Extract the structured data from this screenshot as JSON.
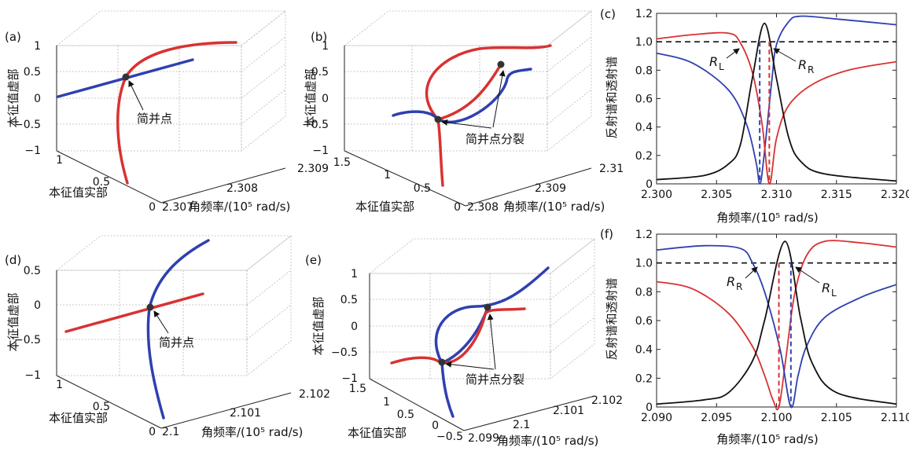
{
  "panel_labels": [
    "(a)",
    "(b)",
    "(c)",
    "(d)",
    "(e)",
    "(f)"
  ],
  "colors": {
    "red": "#d93232",
    "blue": "#2f40b0",
    "black": "#111111",
    "dash": "#111111",
    "marker": "#333333"
  },
  "chart_data": [
    {
      "id": "a",
      "type": "line3d",
      "title": "(a)",
      "zlabel": "本征值虚部",
      "ylabel": "本征值实部",
      "xlabel": "角频率/(10⁵ rad/s)",
      "z_ticks": [
        "1",
        "0.5",
        "0",
        "−0.5",
        "−1"
      ],
      "y_ticks": [
        "1",
        "0.5",
        "0"
      ],
      "x_ticks": [
        "2.307",
        "2.308",
        "2.309"
      ],
      "annotation": "简并点",
      "series": [
        {
          "name": "red branch",
          "color": "red",
          "shape": "parabola opening to right, through degenerate point"
        },
        {
          "name": "blue branch",
          "color": "blue",
          "shape": "straight line crossing degenerate point"
        }
      ]
    },
    {
      "id": "b",
      "type": "line3d",
      "title": "(b)",
      "zlabel": "本征值虚部",
      "ylabel": "本征值实部",
      "xlabel": "角频率/(10⁵ rad/s)",
      "z_ticks": [
        "1",
        "0.5",
        "0",
        "−0.5",
        "−1"
      ],
      "y_ticks": [
        "1.5",
        "1",
        "0.5",
        "0"
      ],
      "x_ticks": [
        "2.308",
        "2.309",
        "2.31"
      ],
      "annotation": "简并点分裂",
      "series": [
        {
          "name": "red branch",
          "color": "red",
          "shape": "loop with split degenerate points"
        },
        {
          "name": "blue branch",
          "color": "blue",
          "shape": "S-curve between split points"
        }
      ]
    },
    {
      "id": "c",
      "type": "line",
      "title": "(c)",
      "ylabel": "反射谱和透射谱",
      "xlabel": "角频率/(10⁵ rad/s)",
      "xlim": [
        2.3,
        2.32
      ],
      "ylim": [
        0,
        1.2
      ],
      "x_ticks": [
        "2.300",
        "2.305",
        "2.310",
        "2.315",
        "2.320"
      ],
      "y_ticks": [
        "0",
        "0.2",
        "0.4",
        "0.6",
        "0.8",
        "1.0",
        "1.2"
      ],
      "dashed_verticals": [
        2.3086,
        2.3094
      ],
      "reference_line": 1.0,
      "labels": [
        {
          "text": "R",
          "sub": "L"
        },
        {
          "text": "R",
          "sub": "R"
        }
      ],
      "series": [
        {
          "name": "R_L",
          "color": "blue",
          "x": [
            2.3,
            2.303,
            2.306,
            2.3075,
            2.3083,
            2.3086,
            2.3089,
            2.3096,
            2.31,
            2.311,
            2.312,
            2.315,
            2.32
          ],
          "y": [
            0.92,
            0.85,
            0.66,
            0.42,
            0.15,
            0.0,
            0.15,
            0.72,
            0.98,
            1.14,
            1.18,
            1.16,
            1.12
          ]
        },
        {
          "name": "R_R",
          "color": "red",
          "x": [
            2.3,
            2.303,
            2.306,
            2.307,
            2.308,
            2.3088,
            2.3094,
            2.31,
            2.311,
            2.313,
            2.316,
            2.32
          ],
          "y": [
            1.02,
            1.05,
            1.06,
            0.99,
            0.78,
            0.42,
            0.0,
            0.32,
            0.55,
            0.7,
            0.8,
            0.86
          ]
        },
        {
          "name": "T",
          "color": "black",
          "x": [
            2.3,
            2.304,
            2.306,
            2.307,
            2.308,
            2.309,
            2.31,
            2.311,
            2.312,
            2.314,
            2.32
          ],
          "y": [
            0.03,
            0.06,
            0.14,
            0.28,
            0.75,
            1.13,
            0.74,
            0.33,
            0.16,
            0.07,
            0.02
          ]
        }
      ]
    },
    {
      "id": "d",
      "type": "line3d",
      "title": "(d)",
      "zlabel": "本征值虚部",
      "ylabel": "本征值实部",
      "xlabel": "角频率/(10⁵ rad/s)",
      "z_ticks": [
        "0.5",
        "0",
        "−0.5",
        "−1"
      ],
      "y_ticks": [
        "1",
        "0.5",
        "0"
      ],
      "x_ticks": [
        "2.1",
        "2.101",
        "2.102"
      ],
      "annotation": "简并点",
      "series": [
        {
          "name": "blue branch",
          "color": "blue",
          "shape": "parabola through degenerate point"
        },
        {
          "name": "red branch",
          "color": "red",
          "shape": "straight line crossing degenerate point"
        }
      ]
    },
    {
      "id": "e",
      "type": "line3d",
      "title": "(e)",
      "zlabel": "本征值虚部",
      "ylabel": "本征值实部",
      "xlabel": "角频率/(10⁵ rad/s)",
      "z_ticks": [
        "1",
        "0.5",
        "0",
        "−0.5",
        "−1"
      ],
      "y_ticks": [
        "1.5",
        "1",
        "0.5",
        "0",
        "−0.5"
      ],
      "x_ticks": [
        "2.099",
        "2.1",
        "2.101",
        "2.102"
      ],
      "annotation": "简并点分裂",
      "series": [
        {
          "name": "blue branch",
          "color": "blue",
          "shape": "loop with split degenerate points"
        },
        {
          "name": "red branch",
          "color": "red",
          "shape": "S-curve between split points"
        }
      ]
    },
    {
      "id": "f",
      "type": "line",
      "title": "(f)",
      "ylabel": "反射谱和透射谱",
      "xlabel": "角频率/(10⁵ rad/s)",
      "xlim": [
        2.09,
        2.11
      ],
      "ylim": [
        0,
        1.2
      ],
      "x_ticks": [
        "2.090",
        "2.095",
        "2.100",
        "2.105",
        "2.110"
      ],
      "y_ticks": [
        "0",
        "0.2",
        "0.4",
        "0.6",
        "0.8",
        "1.0",
        "1.2"
      ],
      "dashed_verticals": [
        2.1002,
        2.1012
      ],
      "reference_line": 1.0,
      "labels": [
        {
          "text": "R",
          "sub": "R"
        },
        {
          "text": "R",
          "sub": "L"
        }
      ],
      "series": [
        {
          "name": "R_R",
          "color": "red",
          "x": [
            2.09,
            2.093,
            2.096,
            2.098,
            2.099,
            2.0997,
            2.1002,
            2.1008,
            2.1015,
            2.1025,
            2.104,
            2.107,
            2.11
          ],
          "y": [
            0.87,
            0.82,
            0.65,
            0.42,
            0.22,
            0.05,
            0.0,
            0.35,
            0.78,
            1.05,
            1.15,
            1.14,
            1.11
          ]
        },
        {
          "name": "R_L",
          "color": "blue",
          "x": [
            2.09,
            2.094,
            2.097,
            2.098,
            2.099,
            2.1003,
            2.1012,
            2.1018,
            2.1025,
            2.104,
            2.107,
            2.11
          ],
          "y": [
            1.09,
            1.12,
            1.1,
            1.0,
            0.8,
            0.4,
            0.0,
            0.22,
            0.42,
            0.62,
            0.76,
            0.85
          ]
        },
        {
          "name": "T",
          "color": "black",
          "x": [
            2.09,
            2.094,
            2.096,
            2.098,
            2.099,
            2.1007,
            2.102,
            2.103,
            2.105,
            2.11
          ],
          "y": [
            0.02,
            0.05,
            0.1,
            0.32,
            0.6,
            1.15,
            0.62,
            0.3,
            0.1,
            0.02
          ]
        }
      ]
    }
  ]
}
